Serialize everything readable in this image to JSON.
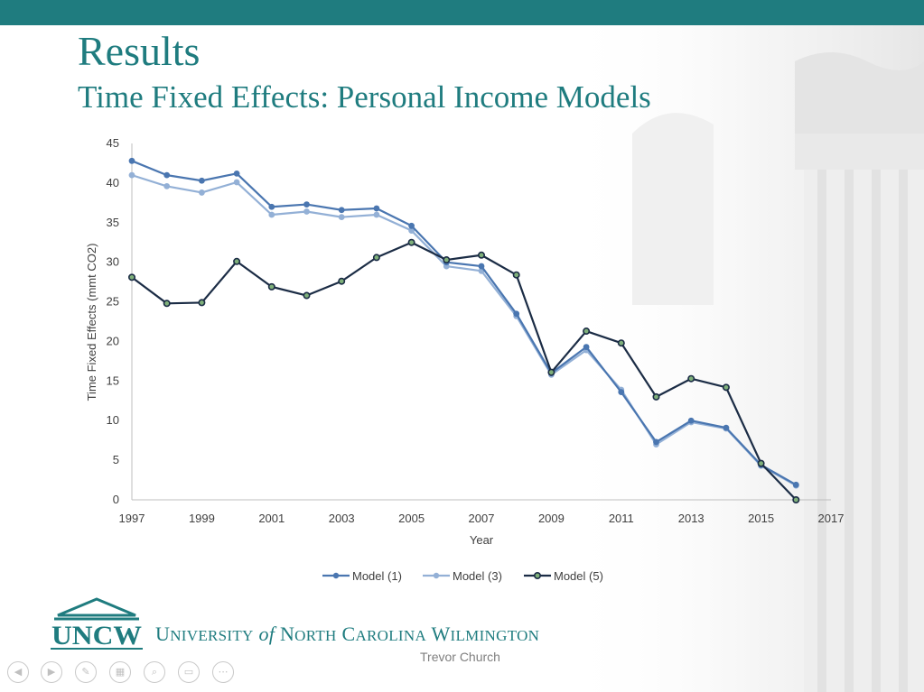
{
  "slide": {
    "title": "Results",
    "subtitle": "Time Fixed Effects: Personal Income Models"
  },
  "footer": {
    "logo_text": "UNCW",
    "university": {
      "u": "U",
      "niversity": "NIVERSITY",
      "of": "of",
      "n": "N",
      "orth": "ORTH",
      "c": "C",
      "arolina": "AROLINA",
      "w": "W",
      "ilmington": "ILMINGTON"
    },
    "author": "Trevor Church"
  },
  "colors": {
    "brand": "#1f7c7f",
    "model1": "#4a76b0",
    "model3": "#93b0d6",
    "model5": "#1b2c45",
    "model5_marker_fill": "#7fb07a"
  },
  "nav_icons": [
    "prev-icon",
    "next-icon",
    "pen-icon",
    "slides-icon",
    "zoom-icon",
    "subtitles-icon",
    "more-icon"
  ],
  "chart_data": {
    "type": "line",
    "title": "",
    "xlabel": "Year",
    "ylabel": "Time Fixed Effects (mmt CO2)",
    "xlim": [
      1997,
      2017
    ],
    "ylim": [
      0,
      45
    ],
    "xticks": [
      1997,
      1999,
      2001,
      2003,
      2005,
      2007,
      2009,
      2011,
      2013,
      2015,
      2017
    ],
    "yticks": [
      0,
      5,
      10,
      15,
      20,
      25,
      30,
      35,
      40,
      45
    ],
    "grid": false,
    "legend": "bottom",
    "x": [
      1997,
      1998,
      1999,
      2000,
      2001,
      2002,
      2003,
      2004,
      2005,
      2006,
      2007,
      2008,
      2009,
      2010,
      2011,
      2012,
      2013,
      2014,
      2015,
      2016
    ],
    "series": [
      {
        "name": "Model (1)",
        "values": [
          42.8,
          41.0,
          40.3,
          41.2,
          37.0,
          37.3,
          36.6,
          36.8,
          34.6,
          30.0,
          29.5,
          23.5,
          16.0,
          19.3,
          13.6,
          7.3,
          10.0,
          9.1,
          4.4,
          1.9
        ]
      },
      {
        "name": "Model (3)",
        "values": [
          41.0,
          39.6,
          38.8,
          40.1,
          36.0,
          36.4,
          35.7,
          36.0,
          34.0,
          29.5,
          28.9,
          23.2,
          15.8,
          18.9,
          13.9,
          7.0,
          9.8,
          9.0,
          4.3,
          1.8
        ]
      },
      {
        "name": "Model (5)",
        "values": [
          28.1,
          24.8,
          24.9,
          30.1,
          26.9,
          25.8,
          27.6,
          30.6,
          32.5,
          30.3,
          30.9,
          28.4,
          16.1,
          21.3,
          19.8,
          13.0,
          15.3,
          14.2,
          4.6,
          0.0
        ]
      }
    ]
  }
}
